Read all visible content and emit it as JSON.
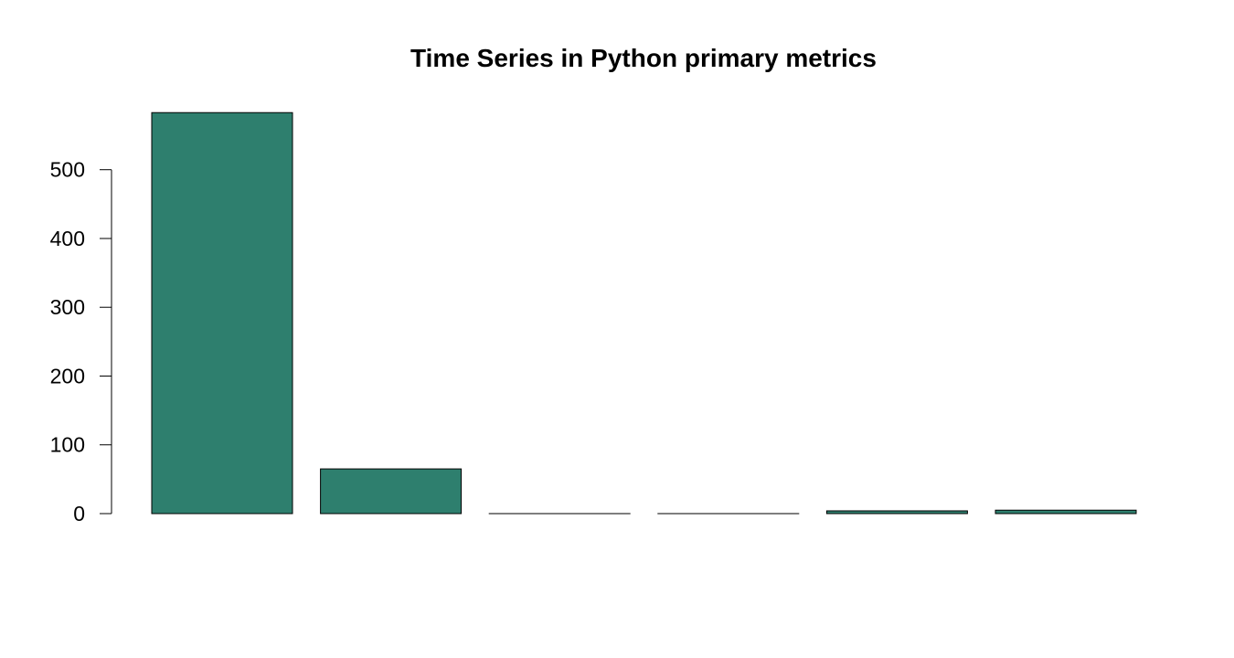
{
  "chart_data": {
    "type": "bar",
    "title": "Time Series in Python primary metrics",
    "xlabel": "",
    "ylabel": "",
    "categories": [
      "",
      "",
      "",
      "",
      "",
      ""
    ],
    "values": [
      583,
      65,
      0,
      0,
      4,
      5
    ],
    "ylim": [
      0,
      583
    ],
    "yticks": [
      0,
      100,
      200,
      300,
      400,
      500
    ],
    "bar_color": "#2e7f6e",
    "grid": false,
    "legend": "none"
  }
}
